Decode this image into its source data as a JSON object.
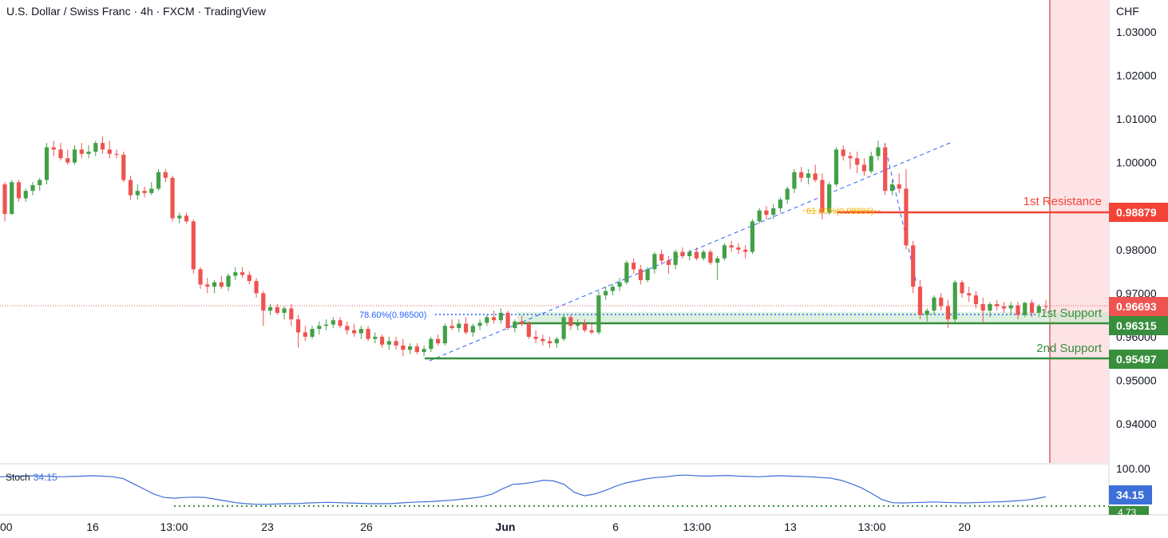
{
  "header": {
    "title": "U.S. Dollar / Swiss Franc · 4h · FXCM · TradingView",
    "currency": "CHF"
  },
  "chart_data": {
    "type": "candlestick",
    "instrument": "U.S. Dollar / Swiss Franc",
    "timeframe": "4h",
    "source": "FXCM",
    "y_ticks": [
      1.03,
      1.02,
      1.01,
      1.0,
      0.99,
      0.98,
      0.97,
      0.96,
      0.95,
      0.94
    ],
    "y_tick_labels": [
      "1.03000",
      "1.02000",
      "1.01000",
      "1.00000",
      "",
      "0.98000",
      "0.97000",
      "0.96000",
      "0.95000",
      "0.94000"
    ],
    "ylim": [
      0.9335,
      1.0335
    ],
    "x_labels": [
      "00",
      "16",
      "13:00",
      "23",
      "26",
      "Jun",
      "6",
      "13:00",
      "13",
      "13:00",
      "20"
    ],
    "grid": false,
    "levels": [
      {
        "name": "1st Resistance",
        "value": 0.98879,
        "label": "0.98879",
        "color": "#f44336"
      },
      {
        "name": "1st Support",
        "value": 0.96315,
        "label": "0.96315",
        "color": "#388e3c"
      },
      {
        "name": "2nd Support",
        "value": 0.95497,
        "label": "0.95497",
        "color": "#388e3c"
      }
    ],
    "current_price": {
      "value": 0.96693,
      "label": "0.96693",
      "color": "#ef5350"
    },
    "fib_annotations": [
      {
        "label": "78.60%(0.96500)",
        "value": 0.965,
        "color": "#2962ff"
      },
      {
        "label": "61.80%(0.98896)",
        "value": 0.98896,
        "color": "#f0b000"
      }
    ],
    "candles": [
      [
        0.995,
        0.9955,
        0.9865,
        0.9882
      ],
      [
        0.9882,
        0.996,
        0.988,
        0.9955
      ],
      [
        0.9955,
        0.996,
        0.991,
        0.9918
      ],
      [
        0.9918,
        0.994,
        0.991,
        0.9935
      ],
      [
        0.9935,
        0.9955,
        0.9925,
        0.9948
      ],
      [
        0.9948,
        0.9965,
        0.9935,
        0.996
      ],
      [
        0.996,
        1.0045,
        0.995,
        1.0035
      ],
      [
        1.0035,
        1.005,
        1.0015,
        1.003
      ],
      [
        1.003,
        1.0045,
        1.0005,
        1.001
      ],
      [
        1.001,
        1.003,
        0.9995,
        1.0
      ],
      [
        1.0,
        1.004,
        0.9995,
        1.003
      ],
      [
        1.003,
        1.0045,
        1.001,
        1.002
      ],
      [
        1.002,
        1.004,
        1.001,
        1.0025
      ],
      [
        1.0025,
        1.005,
        1.0015,
        1.0045
      ],
      [
        1.0045,
        1.006,
        1.002,
        1.003
      ],
      [
        1.003,
        1.005,
        1.001,
        1.002
      ],
      [
        1.002,
        1.003,
        1.001,
        1.0018
      ],
      [
        1.0018,
        1.0025,
        0.9955,
        0.996
      ],
      [
        0.996,
        0.997,
        0.9915,
        0.9925
      ],
      [
        0.9925,
        0.995,
        0.9915,
        0.9935
      ],
      [
        0.9935,
        0.9945,
        0.992,
        0.993
      ],
      [
        0.993,
        0.9955,
        0.9925,
        0.994
      ],
      [
        0.994,
        0.9985,
        0.9935,
        0.9978
      ],
      [
        0.9978,
        0.9985,
        0.9955,
        0.9965
      ],
      [
        0.9965,
        0.997,
        0.9865,
        0.9872
      ],
      [
        0.9872,
        0.9885,
        0.986,
        0.9878
      ],
      [
        0.9878,
        0.9885,
        0.986,
        0.9865
      ],
      [
        0.9865,
        0.987,
        0.9745,
        0.9755
      ],
      [
        0.9755,
        0.976,
        0.971,
        0.972
      ],
      [
        0.972,
        0.9735,
        0.97,
        0.9715
      ],
      [
        0.9715,
        0.973,
        0.97,
        0.9725
      ],
      [
        0.9725,
        0.974,
        0.971,
        0.9715
      ],
      [
        0.9715,
        0.9745,
        0.9705,
        0.974
      ],
      [
        0.974,
        0.976,
        0.973,
        0.9748
      ],
      [
        0.9748,
        0.976,
        0.9735,
        0.9742
      ],
      [
        0.9742,
        0.975,
        0.972,
        0.9728
      ],
      [
        0.9728,
        0.9735,
        0.969,
        0.97
      ],
      [
        0.97,
        0.9705,
        0.9625,
        0.966
      ],
      [
        0.966,
        0.9675,
        0.965,
        0.9668
      ],
      [
        0.9668,
        0.9675,
        0.965,
        0.9655
      ],
      [
        0.9655,
        0.967,
        0.964,
        0.9665
      ],
      [
        0.9665,
        0.9675,
        0.9625,
        0.964
      ],
      [
        0.964,
        0.965,
        0.9575,
        0.961
      ],
      [
        0.961,
        0.9625,
        0.959,
        0.96
      ],
      [
        0.96,
        0.9625,
        0.9595,
        0.9618
      ],
      [
        0.9618,
        0.9635,
        0.9605,
        0.9625
      ],
      [
        0.9625,
        0.964,
        0.9615,
        0.9628
      ],
      [
        0.9628,
        0.9645,
        0.962,
        0.9638
      ],
      [
        0.9638,
        0.9645,
        0.962,
        0.9625
      ],
      [
        0.9625,
        0.9635,
        0.9605,
        0.9615
      ],
      [
        0.9615,
        0.963,
        0.96,
        0.9608
      ],
      [
        0.9608,
        0.9625,
        0.9595,
        0.9618
      ],
      [
        0.9618,
        0.9625,
        0.959,
        0.9595
      ],
      [
        0.9595,
        0.961,
        0.9585,
        0.96
      ],
      [
        0.96,
        0.9605,
        0.9575,
        0.9582
      ],
      [
        0.9582,
        0.96,
        0.957,
        0.959
      ],
      [
        0.959,
        0.96,
        0.957,
        0.958
      ],
      [
        0.958,
        0.9595,
        0.9555,
        0.957
      ],
      [
        0.957,
        0.9585,
        0.956,
        0.9578
      ],
      [
        0.9578,
        0.9585,
        0.956,
        0.9565
      ],
      [
        0.9565,
        0.958,
        0.9555,
        0.9572
      ],
      [
        0.9572,
        0.96,
        0.9565,
        0.9595
      ],
      [
        0.9595,
        0.9605,
        0.958,
        0.9585
      ],
      [
        0.9585,
        0.963,
        0.958,
        0.9625
      ],
      [
        0.9625,
        0.964,
        0.9615,
        0.962
      ],
      [
        0.962,
        0.964,
        0.961,
        0.963
      ],
      [
        0.963,
        0.9645,
        0.9605,
        0.961
      ],
      [
        0.961,
        0.963,
        0.96,
        0.9625
      ],
      [
        0.9625,
        0.964,
        0.9615,
        0.9632
      ],
      [
        0.9632,
        0.965,
        0.9625,
        0.9645
      ],
      [
        0.9645,
        0.966,
        0.963,
        0.9638
      ],
      [
        0.9638,
        0.9665,
        0.963,
        0.9655
      ],
      [
        0.9655,
        0.966,
        0.9615,
        0.962
      ],
      [
        0.962,
        0.964,
        0.961,
        0.9635
      ],
      [
        0.9635,
        0.9648,
        0.9625,
        0.963
      ],
      [
        0.963,
        0.9635,
        0.9595,
        0.96
      ],
      [
        0.96,
        0.9615,
        0.9585,
        0.9595
      ],
      [
        0.9595,
        0.9605,
        0.958,
        0.959
      ],
      [
        0.959,
        0.96,
        0.9575,
        0.9585
      ],
      [
        0.9585,
        0.96,
        0.9575,
        0.9595
      ],
      [
        0.9595,
        0.965,
        0.959,
        0.9645
      ],
      [
        0.9645,
        0.965,
        0.9615,
        0.9625
      ],
      [
        0.9625,
        0.964,
        0.9615,
        0.963
      ],
      [
        0.963,
        0.964,
        0.961,
        0.9615
      ],
      [
        0.9615,
        0.963,
        0.9605,
        0.961
      ],
      [
        0.961,
        0.9705,
        0.9605,
        0.9695
      ],
      [
        0.9695,
        0.9715,
        0.9685,
        0.9705
      ],
      [
        0.9705,
        0.972,
        0.9695,
        0.9715
      ],
      [
        0.9715,
        0.9735,
        0.9705,
        0.9725
      ],
      [
        0.9725,
        0.9775,
        0.972,
        0.977
      ],
      [
        0.977,
        0.978,
        0.9745,
        0.9755
      ],
      [
        0.9755,
        0.9765,
        0.972,
        0.973
      ],
      [
        0.973,
        0.976,
        0.9725,
        0.9755
      ],
      [
        0.9755,
        0.9795,
        0.9745,
        0.979
      ],
      [
        0.979,
        0.98,
        0.9765,
        0.9775
      ],
      [
        0.9775,
        0.9785,
        0.9745,
        0.9765
      ],
      [
        0.9765,
        0.98,
        0.9755,
        0.9795
      ],
      [
        0.9795,
        0.9805,
        0.978,
        0.9785
      ],
      [
        0.9785,
        0.98,
        0.9775,
        0.9795
      ],
      [
        0.9795,
        0.9805,
        0.9775,
        0.978
      ],
      [
        0.978,
        0.98,
        0.9775,
        0.9795
      ],
      [
        0.9795,
        0.98,
        0.9765,
        0.977
      ],
      [
        0.977,
        0.9785,
        0.973,
        0.978
      ],
      [
        0.978,
        0.9815,
        0.9775,
        0.981
      ],
      [
        0.981,
        0.982,
        0.9795,
        0.9805
      ],
      [
        0.9805,
        0.9815,
        0.979,
        0.98
      ],
      [
        0.98,
        0.981,
        0.978,
        0.9795
      ],
      [
        0.9795,
        0.987,
        0.979,
        0.9865
      ],
      [
        0.9865,
        0.9895,
        0.986,
        0.989
      ],
      [
        0.989,
        0.99,
        0.987,
        0.988
      ],
      [
        0.988,
        0.9905,
        0.987,
        0.9895
      ],
      [
        0.9895,
        0.992,
        0.9885,
        0.9915
      ],
      [
        0.9915,
        0.9945,
        0.9905,
        0.994
      ],
      [
        0.994,
        0.9985,
        0.993,
        0.9978
      ],
      [
        0.9978,
        0.999,
        0.9955,
        0.9965
      ],
      [
        0.9965,
        0.9985,
        0.995,
        0.9975
      ],
      [
        0.9975,
        0.9995,
        0.9955,
        0.996
      ],
      [
        0.996,
        0.9975,
        0.987,
        0.9885
      ],
      [
        0.9885,
        0.9955,
        0.988,
        0.995
      ],
      [
        0.995,
        1.0035,
        0.9945,
        1.003
      ],
      [
        1.003,
        1.004,
        1.0005,
        1.0015
      ],
      [
        1.0015,
        1.0025,
        0.9985,
        1.001
      ],
      [
        1.001,
        1.0025,
        0.9975,
        0.9995
      ],
      [
        0.9995,
        1.001,
        0.997,
        0.998
      ],
      [
        0.998,
        1.0025,
        0.9975,
        1.0015
      ],
      [
        1.0015,
        1.005,
        1.0005,
        1.0035
      ],
      [
        1.0035,
        1.0045,
        0.9925,
        0.9935
      ],
      [
        0.9935,
        0.996,
        0.9925,
        0.995
      ],
      [
        0.995,
        0.9975,
        0.993,
        0.994
      ],
      [
        0.994,
        0.9985,
        0.98,
        0.981
      ],
      [
        0.981,
        0.982,
        0.97,
        0.9715
      ],
      [
        0.9715,
        0.973,
        0.964,
        0.965
      ],
      [
        0.965,
        0.9665,
        0.9635,
        0.966
      ],
      [
        0.966,
        0.9695,
        0.965,
        0.969
      ],
      [
        0.969,
        0.97,
        0.966,
        0.967
      ],
      [
        0.967,
        0.9685,
        0.962,
        0.964
      ],
      [
        0.964,
        0.973,
        0.963,
        0.9725
      ],
      [
        0.9725,
        0.973,
        0.969,
        0.97
      ],
      [
        0.97,
        0.9715,
        0.968,
        0.9695
      ],
      [
        0.9695,
        0.9705,
        0.9665,
        0.9675
      ],
      [
        0.9675,
        0.969,
        0.963,
        0.966
      ],
      [
        0.966,
        0.968,
        0.9645,
        0.9675
      ],
      [
        0.9675,
        0.9685,
        0.966,
        0.967
      ],
      [
        0.967,
        0.968,
        0.9655,
        0.9665
      ],
      [
        0.9665,
        0.968,
        0.965,
        0.9672
      ],
      [
        0.9672,
        0.968,
        0.964,
        0.965
      ],
      [
        0.965,
        0.968,
        0.9645,
        0.9678
      ],
      [
        0.9678,
        0.9685,
        0.9645,
        0.9655
      ],
      [
        0.9655,
        0.9675,
        0.9645,
        0.967
      ],
      [
        0.967,
        0.9685,
        0.9655,
        0.9669
      ]
    ],
    "stochastic": {
      "label": "Stoch",
      "value": "34.15",
      "value_num": 34.15,
      "axis_top_label": "100.00",
      "lower_band_label": "4.73",
      "color": "#3d6fd8",
      "values": [
        90,
        91,
        92,
        93,
        92,
        91,
        90,
        91,
        92,
        93,
        92,
        90,
        85,
        70,
        55,
        40,
        30,
        28,
        30,
        31,
        30,
        25,
        20,
        15,
        12,
        10,
        10,
        11,
        12,
        12,
        14,
        15,
        16,
        15,
        14,
        13,
        12,
        12,
        12,
        14,
        16,
        17,
        18,
        20,
        22,
        25,
        28,
        32,
        40,
        55,
        68,
        70,
        74,
        80,
        78,
        68,
        45,
        35,
        40,
        50,
        62,
        72,
        78,
        84,
        88,
        90,
        94,
        95,
        93,
        92,
        93,
        94,
        92,
        91,
        90,
        92,
        93,
        92,
        91,
        90,
        88,
        86,
        80,
        70,
        58,
        42,
        24,
        15,
        14,
        15,
        16,
        17,
        16,
        15,
        14,
        15,
        16,
        17,
        18,
        20,
        22,
        26,
        32
      ]
    },
    "x_tick_colors": {
      "bull": "#26a69a",
      "bear": "#ef5350"
    }
  }
}
